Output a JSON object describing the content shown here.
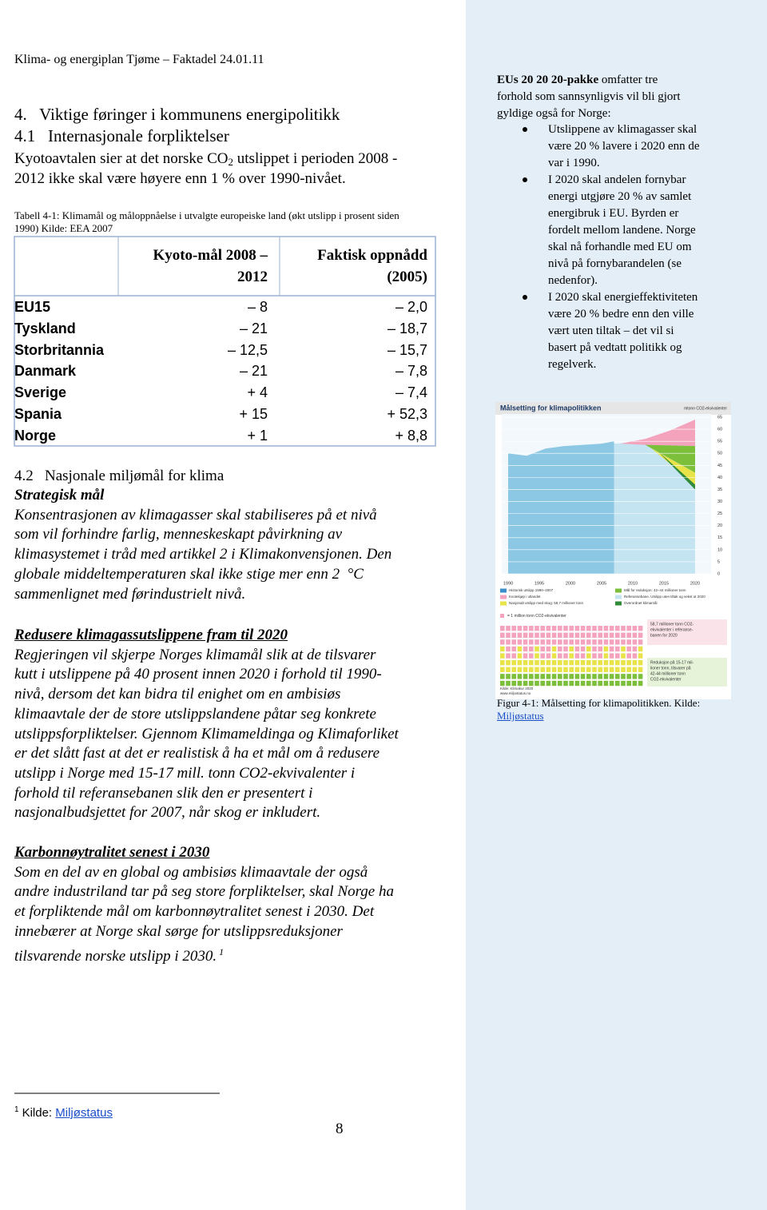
{
  "header": {
    "running_title": "Klima- og energiplan Tjøme – Faktadel 24.01.11"
  },
  "section_4": {
    "heading": "4.   Viktige føringer i kommunens energipolitikk"
  },
  "section_4_1": {
    "heading": "4.1   Internasjonale forpliktelser",
    "paragraph": {
      "line_1_start": "Kyotoavtalen sier at det norske CO",
      "subscript": "2",
      "line_1_end": " utslippet i perioden 2008 -",
      "line_2": "2012 ikke skal være høyere enn 1 % over 1990-nivået."
    }
  },
  "table": {
    "caption": [
      "Tabell 4-1: Klimamål og måloppnåelse i utvalgte europeiske land (økt utslipp i prosent siden",
      "1990) Kilde: EEA 2007"
    ],
    "header": [
      [
        "Kyoto-mål 2008 –",
        "2012"
      ],
      [
        "Faktisk oppnådd",
        "(2005)"
      ]
    ],
    "rows": [
      [
        "EU15",
        "– 8",
        "– 2,0"
      ],
      [
        "Tyskland",
        "– 21",
        "– 18,7"
      ],
      [
        "Storbritannia",
        "– 12,5",
        "– 15,7"
      ],
      [
        "Danmark",
        "– 21",
        "– 7,8"
      ],
      [
        "Sverige",
        "+ 4",
        "– 7,4"
      ],
      [
        "Spania",
        "+ 15",
        "+ 52,3"
      ],
      [
        "Norge",
        "+ 1",
        "+ 8,8"
      ]
    ]
  },
  "section_4_2": {
    "heading": "4.2   Nasjonale miljømål for klima",
    "blocks": [
      {
        "title": "Strategisk mål",
        "lines": [
          "Konsentrasjonen av klimagasser skal stabiliseres på et nivå",
          "som vil forhindre farlig, menneskeskapt påvirkning av",
          "klimasystemet i tråd med artikkel 2 i Klimakonvensjonen. Den",
          "globale middeltemperaturen skal ikke stige mer enn 2  °C",
          "sammenlignet med førindustrielt nivå."
        ]
      },
      {
        "title": "Redusere klimagassutslippene fram til 2020",
        "lines": [
          "Regjeringen vil skjerpe Norges klimamål slik at de tilsvarer",
          "kutt i utslippene på 40 prosent innen 2020 i forhold til 1990-",
          "nivå, dersom det kan bidra til enighet om en ambisiøs",
          "klimaavtale der de store utslippslandene påtar seg konkrete",
          "utslippsforpliktelser. Gjennom Klimameldinga og Klimaforliket",
          "er det slått fast at det er realistisk å ha et mål om å redusere",
          "utslipp i Norge med 15-17 mill. tonn CO2-ekvivalenter i",
          "forhold til referansebanen slik den er presentert i",
          "nasjonalbudsjettet for 2007, når skog er inkludert."
        ]
      },
      {
        "title": "Karbonnøytralitet senest i 2030",
        "lines": [
          "Som en del av en global og ambisiøs klimaavtale der også",
          "andre industriland tar på seg store forpliktelser, skal Norge ha",
          "et forpliktende mål om karbonnøytralitet senest i 2030. Det",
          "innebærer at Norge skal sørge for utslippsreduksjoner",
          "tilsvarende norske utslipp i 2030."
        ],
        "footnote_ref": "1"
      }
    ]
  },
  "footnote": {
    "marker": "1",
    "text": "Kilde: ",
    "link": "Miljøstatus"
  },
  "page_number": "8",
  "sidebar": {
    "intro_bold": "EUs 20 20 20-pakke",
    "intro_rest": " omfatter tre",
    "intro_lines": [
      "forhold som sannsynligvis vil bli gjort",
      "gyldige også for Norge:"
    ],
    "bullets": [
      [
        "Utslippene av klimagasser skal",
        "være 20 % lavere i 2020 enn de",
        "var i 1990."
      ],
      [
        "I 2020 skal andelen fornybar",
        "energi utgjøre 20 % av samlet",
        "energibruk i EU. Byrden er",
        "fordelt mellom landene. Norge",
        "skal nå forhandle med EU om",
        "nivå på fornybarandelen (se",
        "nedenfor)."
      ],
      [
        "I 2020 skal energieffektiviteten",
        "være 20 % bedre enn den ville",
        "vært uten tiltak – det vil si",
        "basert på vedtatt politikk og",
        "regelverk."
      ]
    ],
    "figure": {
      "title": "Målsetting for klimapolitikken",
      "unit": "mtonn CO2-ekvivalenter",
      "yticks": [
        65,
        60,
        55,
        50,
        45,
        40,
        35,
        30,
        25,
        20,
        15,
        10,
        5,
        0
      ],
      "xticks": [
        1990,
        1995,
        2000,
        2005,
        2010,
        2015,
        2020
      ],
      "legend": [
        "Historisk utslipp 1990–2007",
        "Mål for reduksjon: 42–44 millioner tonn",
        "Kvotekjøp i utlandet",
        "Referansebane. Utslipp uten tiltak og vekst ut 2020",
        "Nasjonalt utslipp med skog: 58,7 millioner tonn",
        "Overordnet klimamål"
      ],
      "square_note": "= 1 million tonn CO2-ekvivalenter",
      "box_1": [
        "58,7 millioner tonn CO2-",
        "ekvivalenter i referanse-",
        "banen for 2020"
      ],
      "box_2": [
        "Reduksjon på 15-17 mil-",
        "lioner tonn, tilsvarer på",
        "42-44 millioner tonn",
        "CO2-ekvivalenter"
      ],
      "source": [
        "Kilde: Klimakur 2020",
        "www.miljostatus.no"
      ],
      "caption": "Figur 4-1: Målsetting for klimapolitikken. Kilde:",
      "caption_link": "Miljøstatus"
    }
  }
}
